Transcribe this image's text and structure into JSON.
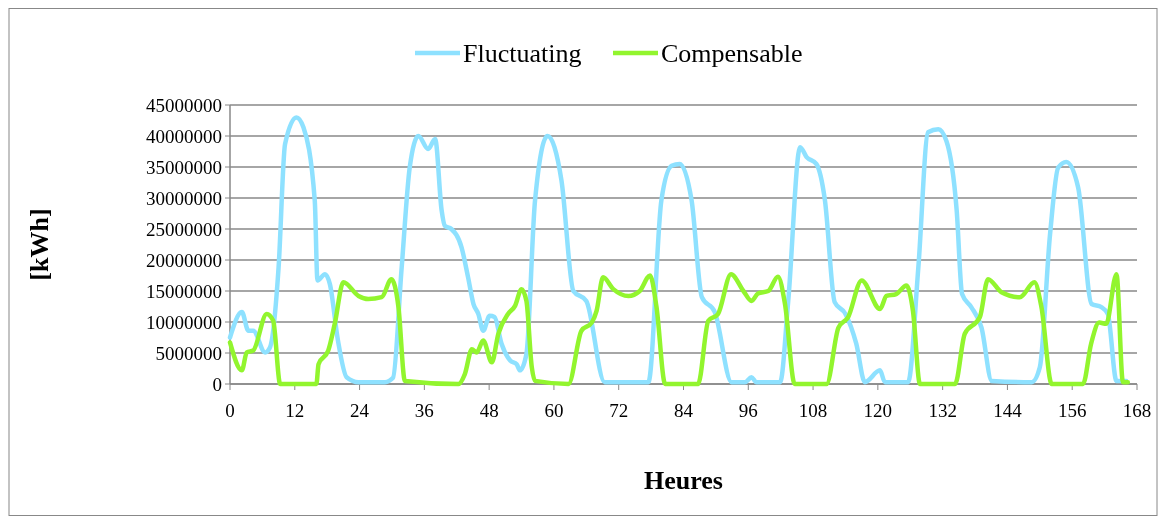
{
  "chart_data": {
    "type": "line",
    "xlabel": "Heures",
    "ylabel": "[kWh]",
    "xlim": [
      0,
      168
    ],
    "xticks": [
      0,
      12,
      24,
      36,
      48,
      60,
      72,
      84,
      96,
      108,
      120,
      132,
      144,
      156,
      168
    ],
    "ylim": [
      0,
      45000000
    ],
    "yticks": [
      0,
      5000000,
      10000000,
      15000000,
      20000000,
      25000000,
      30000000,
      35000000,
      40000000,
      45000000
    ],
    "grid": "y",
    "legend": "top",
    "marker": "none",
    "line_style": "solid",
    "series": [
      {
        "name": "Fluctuating",
        "color": "#8ee1ff",
        "x": [
          0,
          2.2,
          3.4,
          4.3,
          6.5,
          7.4,
          9,
          10.2,
          12.3,
          13.6,
          15.7,
          16.2,
          17.6,
          18.5,
          20,
          21.6,
          23.8,
          28.7,
          30.2,
          31.8,
          33.3,
          34.9,
          36.7,
          38,
          39.2,
          39.8,
          41,
          42.9,
          44.1,
          45.1,
          46,
          46.9,
          48.1,
          49,
          50.3,
          51.9,
          53.1,
          53.7,
          54.9,
          56.5,
          58.8,
          61.4,
          63.6,
          66,
          69.4,
          77.5,
          79.9,
          81.8,
          83.3,
          85.5,
          87.4,
          89.8,
          92.9,
          95.4,
          96.6,
          97.5,
          101.9,
          103.4,
          105.6,
          106.8,
          108.6,
          110.2,
          112,
          114,
          116,
          117.6,
          120.4,
          121.3,
          125.6,
          127.5,
          129.3,
          131.2,
          132.7,
          134.6,
          135.6,
          137.3,
          139.2,
          141.1,
          148.5,
          150,
          151.9,
          153.4,
          154.9,
          157.1,
          159.6,
          161.4,
          162.6,
          164.2,
          166
        ],
        "values": [
          7500000,
          11600000,
          8600000,
          8600000,
          5100000,
          5900000,
          18800000,
          38700000,
          43000000,
          41400000,
          29600000,
          16700000,
          17700000,
          16100000,
          7000000,
          1100000,
          300000,
          300000,
          1000000,
          18800000,
          35000000,
          40000000,
          37900000,
          39500000,
          28000000,
          25500000,
          25000000,
          22000000,
          17200000,
          12900000,
          11300000,
          8600000,
          11000000,
          10800000,
          6500000,
          3800000,
          3200000,
          2200000,
          4800000,
          29600000,
          40000000,
          32800000,
          15000000,
          13400000,
          300000,
          300000,
          29600000,
          35200000,
          35500000,
          29600000,
          14000000,
          11600000,
          300000,
          300000,
          1100000,
          300000,
          300000,
          13400000,
          38200000,
          36600000,
          35500000,
          29600000,
          13200000,
          11300000,
          6500000,
          300000,
          2200000,
          300000,
          300000,
          18800000,
          40600000,
          41100000,
          39200000,
          28000000,
          14500000,
          12400000,
          9100000,
          500000,
          300000,
          2700000,
          24200000,
          34900000,
          35800000,
          31700000,
          12900000,
          12400000,
          11300000,
          500000,
          500000
        ]
      },
      {
        "name": "Compensable",
        "color": "#92f52e",
        "x": [
          0,
          2.2,
          3.1,
          4.3,
          6.8,
          8,
          9.3,
          16,
          16.4,
          18.2,
          19.4,
          21,
          23.8,
          25.6,
          28.1,
          29.9,
          31.2,
          32.4,
          42.3,
          43.5,
          44.8,
          45.7,
          46.9,
          48.5,
          49.7,
          51.5,
          52.8,
          54,
          54.9,
          55.9,
          56.5,
          62.7,
          65.1,
          67,
          67.9,
          69.1,
          71,
          73.8,
          75.9,
          77.8,
          79,
          80.6,
          86.7,
          88.6,
          90.4,
          92.8,
          95.1,
          96.6,
          97.8,
          99.7,
          101.5,
          102.8,
          104.6,
          110.5,
          112.7,
          114.5,
          117,
          120.4,
          121.6,
          123.4,
          125.3,
          126.5,
          127.8,
          134.3,
          136.1,
          138.9,
          140.4,
          142.9,
          146.3,
          149,
          150.3,
          152.2,
          158,
          159.5,
          161,
          162.3,
          164.2,
          165.4,
          166.3
        ],
        "values": [
          6700000,
          2200000,
          5100000,
          5400000,
          11300000,
          10200000,
          0,
          0,
          3200000,
          5400000,
          9700000,
          16400000,
          14200000,
          13700000,
          14000000,
          16900000,
          12400000,
          500000,
          0,
          1600000,
          5600000,
          5100000,
          7000000,
          3500000,
          8100000,
          11300000,
          12600000,
          15300000,
          13400000,
          2700000,
          500000,
          0,
          8600000,
          9900000,
          11800000,
          17200000,
          15300000,
          14200000,
          15000000,
          17500000,
          12400000,
          0,
          0,
          10200000,
          11300000,
          17700000,
          15000000,
          13400000,
          14600000,
          15000000,
          17300000,
          12900000,
          0,
          0,
          9100000,
          10800000,
          16700000,
          12100000,
          14200000,
          14500000,
          15900000,
          11800000,
          0,
          0,
          8100000,
          10800000,
          16900000,
          14800000,
          14000000,
          16400000,
          12400000,
          0,
          0,
          6500000,
          9900000,
          9700000,
          17700000,
          300000,
          300000
        ]
      }
    ]
  }
}
